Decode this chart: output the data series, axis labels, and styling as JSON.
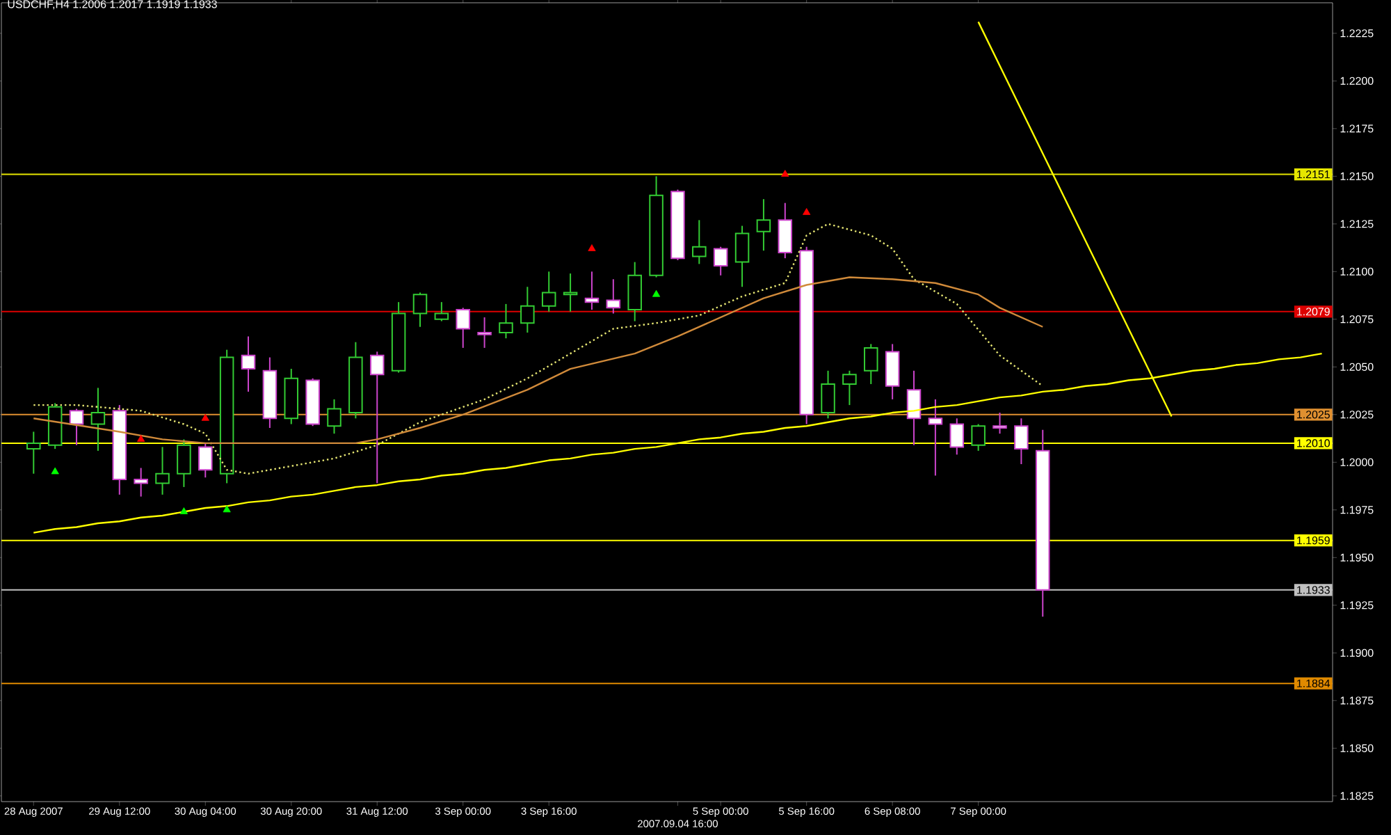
{
  "chart_data": {
    "type": "candlestick",
    "title": "USDCHF,H4  1.2006 1.2017 1.1919 1.1933",
    "categories": [
      "28 Aug 2007",
      null,
      null,
      null,
      "29 Aug 12:00",
      null,
      null,
      null,
      "30 Aug 04:00",
      null,
      null,
      null,
      "30 Aug 20:00",
      null,
      null,
      null,
      "31 Aug 12:00",
      null,
      null,
      null,
      "3 Sep 00:00",
      null,
      null,
      null,
      "3 Sep 16:00",
      null,
      null,
      null,
      null,
      null,
      "2007.09.04 16:00",
      null,
      "5 Sep 00:00",
      null,
      null,
      null,
      "5 Sep 16:00",
      null,
      null,
      null,
      "6 Sep 08:00",
      null,
      null,
      null,
      "7 Sep 00:00",
      null,
      null,
      null,
      null,
      null,
      null,
      null,
      null,
      null,
      null,
      null,
      null,
      null,
      null,
      null,
      null
    ],
    "ylim": [
      1.1822,
      1.2241
    ],
    "yticks": [
      1.1825,
      {
        "value": 1.185,
        "label": "1.1850"
      },
      1.1875,
      {
        "value": 1.19,
        "label": "1.1900"
      },
      1.1925,
      {
        "value": 1.195,
        "label": "1.1950"
      },
      1.1975,
      {
        "value": 1.2,
        "label": "1.2000"
      },
      1.2025,
      {
        "value": 1.205,
        "label": "1.2050"
      },
      1.2075,
      {
        "value": 1.21,
        "label": "1.2100"
      },
      1.2125,
      {
        "value": 1.215,
        "label": "1.2150"
      },
      1.2175,
      {
        "value": 1.22,
        "label": "1.2200"
      },
      1.2225
    ],
    "ref_lines": [
      {
        "axis": "y",
        "value": 1.2151,
        "label": "1.2151",
        "color": "#e6e600"
      },
      {
        "axis": "y",
        "value": 1.2079,
        "label": "1.2079",
        "color": "#dd0000"
      },
      {
        "axis": "y",
        "value": 1.2025,
        "label": "1.2025",
        "color": "#e09030"
      },
      {
        "axis": "y",
        "value": 1.201,
        "label": "1.2010",
        "color": "#ffff00"
      },
      {
        "axis": "y",
        "value": 1.1959,
        "label": "1.1959",
        "color": "#ffff00"
      },
      {
        "axis": "y",
        "value": 1.1933,
        "label": "1.1933",
        "color": "#c0c0c0"
      },
      {
        "axis": "y",
        "value": 1.1884,
        "label": "1.1884",
        "color": "#e08a00"
      }
    ],
    "series": [
      {
        "ohlc": [
          [
            1.2007,
            1.2016,
            1.1994,
            1.201
          ],
          [
            1.2009,
            1.2031,
            1.2007,
            1.2029
          ],
          [
            1.2027,
            1.2028,
            1.2009,
            1.202
          ],
          [
            1.202,
            1.2039,
            1.2006,
            1.2026
          ],
          [
            1.2027,
            1.203,
            1.1983,
            1.1991
          ],
          [
            1.1991,
            1.1997,
            1.1982,
            1.1989
          ],
          [
            1.1989,
            1.2008,
            1.1983,
            1.1994
          ],
          [
            1.1994,
            1.2012,
            1.1987,
            1.2009
          ],
          [
            1.2008,
            1.201,
            1.1992,
            1.1996
          ],
          [
            1.1994,
            1.2059,
            1.1989,
            1.2055
          ],
          [
            1.2056,
            1.2066,
            1.2037,
            1.2049
          ],
          [
            1.2048,
            1.2055,
            1.2018,
            1.2023
          ],
          [
            1.2023,
            1.2049,
            1.202,
            1.2044
          ],
          [
            1.2043,
            1.2044,
            1.2019,
            1.202
          ],
          [
            1.2019,
            1.2033,
            1.2015,
            1.2028
          ],
          [
            1.2026,
            1.2063,
            1.2023,
            1.2055
          ],
          [
            1.2056,
            1.2058,
            1.1989,
            1.2046
          ],
          [
            1.2048,
            1.2084,
            1.2047,
            1.2078
          ],
          [
            1.2078,
            1.2089,
            1.2071,
            1.2088
          ],
          [
            1.2075,
            1.2084,
            1.2074,
            1.2078
          ],
          [
            1.208,
            1.2081,
            1.206,
            1.207
          ],
          [
            1.2068,
            1.2076,
            1.206,
            1.2067
          ],
          [
            1.2068,
            1.2083,
            1.2065,
            1.2073
          ],
          [
            1.2073,
            1.2092,
            1.2068,
            1.2082
          ],
          [
            1.2082,
            1.21,
            1.2079,
            1.2089
          ],
          [
            1.2088,
            1.2099,
            1.2079,
            1.2089
          ],
          [
            1.2086,
            1.21,
            1.208,
            1.2084
          ],
          [
            1.2085,
            1.2096,
            1.2078,
            1.2081
          ],
          [
            1.208,
            1.2105,
            1.2074,
            1.2098
          ],
          [
            1.2098,
            1.215,
            1.2097,
            1.214
          ],
          [
            1.2142,
            1.2143,
            1.2106,
            1.2107
          ],
          [
            1.2108,
            1.2127,
            1.2104,
            1.2113
          ],
          [
            1.2112,
            1.2113,
            1.2098,
            1.2103
          ],
          [
            1.2105,
            1.2124,
            1.2092,
            1.212
          ],
          [
            1.2121,
            1.2138,
            1.2111,
            1.2127
          ],
          [
            1.2127,
            1.2136,
            1.2107,
            1.211
          ],
          [
            1.2111,
            1.2113,
            1.202,
            1.2025
          ],
          [
            1.2026,
            1.2048,
            1.2023,
            1.2041
          ],
          [
            1.2041,
            1.2048,
            1.203,
            1.2046
          ],
          [
            1.2048,
            1.2062,
            1.2041,
            1.206
          ],
          [
            1.2058,
            1.2062,
            1.2033,
            1.204
          ],
          [
            1.2038,
            1.2048,
            1.2009,
            1.2023
          ],
          [
            1.2023,
            1.2033,
            1.1993,
            1.202
          ],
          [
            1.202,
            1.2023,
            1.2004,
            1.2008
          ],
          [
            1.2009,
            1.202,
            1.2006,
            1.2019
          ],
          [
            1.2019,
            1.2026,
            1.2015,
            1.2018
          ],
          [
            1.2019,
            1.2023,
            1.1999,
            1.2007
          ],
          [
            1.2006,
            1.2017,
            1.1919,
            1.1933
          ],
          null,
          null,
          null,
          null,
          null,
          null,
          null,
          null,
          null,
          null,
          null,
          null,
          null
        ],
        "colors": [
          "#33cc33",
          "#33cc33",
          "#cc44cc",
          "#33cc33",
          "#cc44cc",
          "#cc44cc",
          "#33cc33",
          "#33cc33",
          "#cc44cc",
          "#33cc33",
          "#cc44cc",
          "#cc44cc",
          "#33cc33",
          "#cc44cc",
          "#33cc33",
          "#33cc33",
          "#cc44cc",
          "#33cc33",
          "#33cc33",
          "#33cc33",
          "#cc44cc",
          "#cc44cc",
          "#33cc33",
          "#33cc33",
          "#33cc33",
          "#33cc33",
          "#cc44cc",
          "#cc44cc",
          "#33cc33",
          "#33cc33",
          "#cc44cc",
          "#33cc33",
          "#cc44cc",
          "#33cc33",
          "#33cc33",
          "#cc44cc",
          "#cc44cc",
          "#33cc33",
          "#33cc33",
          "#33cc33",
          "#cc44cc",
          "#cc44cc",
          "#cc44cc",
          "#cc44cc",
          "#33cc33",
          "#cc44cc",
          "#cc44cc",
          "#cc44cc",
          null,
          null,
          null,
          null,
          null,
          null,
          null,
          null,
          null,
          null,
          null,
          null,
          null
        ]
      },
      {
        "type": "line",
        "color": "#e6e673",
        "line_style": "dotted",
        "values": [
          1.203,
          null,
          1.203,
          null,
          null,
          1.2027,
          null,
          1.202,
          1.2015,
          1.1996,
          1.1994,
          null,
          1.1998,
          null,
          1.2002,
          null,
          1.2009,
          null,
          1.2021,
          1.2025,
          null,
          1.2033,
          null,
          1.2044,
          null,
          1.2057,
          null,
          1.207,
          null,
          1.2073,
          null,
          1.2077,
          null,
          1.2087,
          null,
          1.2094,
          1.2119,
          1.2125,
          null,
          1.2119,
          1.2112,
          1.2096,
          null,
          1.2083,
          null,
          1.2056,
          null,
          1.204,
          null,
          null,
          null,
          null,
          null,
          null,
          null,
          null,
          null,
          null,
          null,
          null,
          null
        ]
      },
      {
        "type": "line",
        "color": "#d08a3a",
        "line_style": "solid",
        "values": [
          1.2023,
          null,
          null,
          null,
          1.2016,
          null,
          1.2012,
          null,
          1.201,
          null,
          null,
          null,
          1.201,
          null,
          null,
          1.201,
          1.2012,
          null,
          1.2018,
          null,
          1.2025,
          null,
          null,
          1.2038,
          null,
          1.2049,
          null,
          null,
          1.2057,
          null,
          1.2066,
          null,
          1.2076,
          null,
          1.2086,
          null,
          1.2093,
          null,
          1.2097,
          null,
          1.2096,
          null,
          1.2094,
          null,
          1.2088,
          1.2081,
          null,
          1.2071,
          null,
          null,
          null,
          null,
          null,
          null,
          null,
          null,
          null,
          null,
          null,
          null,
          null
        ]
      },
      {
        "type": "line",
        "color": "#ffff00",
        "line_style": "solid",
        "values": [
          1.1963,
          1.1965,
          1.1966,
          1.1968,
          1.1969,
          1.1971,
          1.1972,
          1.1974,
          1.1976,
          1.1977,
          1.1979,
          1.198,
          1.1982,
          1.1983,
          1.1985,
          1.1987,
          1.1988,
          1.199,
          1.1991,
          1.1993,
          1.1994,
          1.1996,
          1.1997,
          1.1999,
          1.2001,
          1.2002,
          1.2004,
          1.2005,
          1.2007,
          1.2008,
          1.201,
          1.2012,
          1.2013,
          1.2015,
          1.2016,
          1.2018,
          1.2019,
          1.2021,
          1.2023,
          1.2024,
          1.2026,
          1.2027,
          1.2029,
          1.203,
          1.2032,
          1.2034,
          1.2035,
          1.2037,
          1.2038,
          1.204,
          1.2041,
          1.2043,
          1.2044,
          1.2046,
          1.2048,
          1.2049,
          1.2051,
          1.2052,
          1.2054,
          1.2055,
          1.2057
        ]
      },
      {
        "type": "line",
        "color": "#ffff00",
        "line_style": "solid",
        "values": [
          null,
          null,
          null,
          null,
          null,
          null,
          null,
          null,
          null,
          null,
          null,
          null,
          null,
          null,
          null,
          null,
          null,
          null,
          null,
          null,
          null,
          null,
          null,
          null,
          null,
          null,
          null,
          null,
          null,
          null,
          null,
          null,
          null,
          null,
          null,
          null,
          null,
          null,
          null,
          null,
          null,
          null,
          null,
          null,
          1.2231,
          1.2208,
          1.2185,
          1.2162,
          1.2139,
          1.2116,
          1.2093,
          1.207,
          1.2047,
          1.2024,
          null,
          null,
          null,
          null,
          null,
          null,
          null
        ]
      },
      {
        "type": "scatter",
        "color": "#ff0000",
        "marker": "triangle",
        "values": [
          null,
          null,
          null,
          null,
          null,
          1.2012,
          null,
          null,
          1.2023,
          null,
          null,
          null,
          null,
          null,
          null,
          null,
          null,
          null,
          null,
          null,
          null,
          null,
          null,
          null,
          null,
          null,
          1.2112,
          null,
          null,
          null,
          null,
          null,
          null,
          null,
          null,
          1.2151,
          1.2131,
          null,
          null,
          null,
          null,
          null,
          null,
          null,
          null,
          null,
          null,
          null,
          null,
          null,
          null,
          null,
          null,
          null,
          null,
          null,
          null,
          null,
          null,
          null,
          null
        ]
      },
      {
        "type": "scatter",
        "color": "#00ff00",
        "marker": "triangle",
        "values": [
          null,
          1.1995,
          null,
          null,
          null,
          null,
          null,
          1.1974,
          null,
          1.1975,
          null,
          null,
          null,
          null,
          null,
          null,
          null,
          null,
          null,
          null,
          null,
          null,
          null,
          null,
          null,
          null,
          null,
          null,
          null,
          1.2088,
          null,
          null,
          null,
          null,
          null,
          null,
          null,
          null,
          null,
          null,
          null,
          null,
          null,
          null,
          null,
          null,
          null,
          null,
          null,
          null,
          null,
          null,
          null,
          null,
          null,
          null,
          null,
          null,
          null,
          null,
          null
        ]
      }
    ]
  }
}
